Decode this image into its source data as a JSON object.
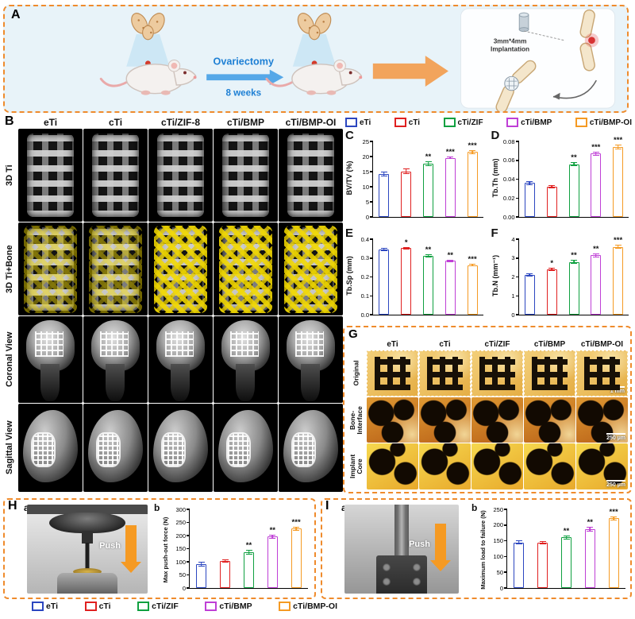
{
  "colors": {
    "groups": [
      "#2b46c0",
      "#e02020",
      "#0fa040",
      "#bf3fd6",
      "#f59a23"
    ],
    "dashed_border": "#ef8b2c",
    "schematic_blue": "#1d7fd4",
    "bone_yellow": "#f2d800"
  },
  "groups": [
    "eTi",
    "cTi",
    "cTi/ZIF",
    "cTi/BMP",
    "cTi/BMP-OI"
  ],
  "panelA": {
    "label": "A",
    "ovariectomy": "Ovariectomy",
    "weeks": "8 weeks",
    "implant_line1": "3mm*4mm",
    "implant_line2": "Implantation"
  },
  "panelB": {
    "label": "B",
    "columns": [
      "eTi",
      "cTi",
      "cTi/ZIF-8",
      "cTi/BMP",
      "cTi/BMP-OI"
    ],
    "rows": [
      "3D Ti",
      "3D Ti+Bone",
      "Coronal View",
      "Sagittal View"
    ]
  },
  "panelG": {
    "label": "G",
    "columns": [
      "eTi",
      "cTi",
      "cTi/ZIF",
      "cTi/BMP",
      "cTi/BMP-OI"
    ],
    "rows": [
      "Original",
      "Bone-Interface",
      "Implant Core"
    ],
    "scalebars": [
      "1 mm",
      "250 µm",
      "250 µm"
    ]
  },
  "panelH": {
    "label": "H",
    "sub_a": "a",
    "sub_b": "b",
    "push": "Push"
  },
  "panelI": {
    "label": "I",
    "sub_a": "a",
    "sub_b": "b",
    "push": "Push"
  },
  "chart_data": [
    {
      "id": "C",
      "panel_label": "C",
      "type": "bar",
      "categories": [
        "eTi",
        "cTi",
        "cTi/ZIF",
        "cTi/BMP",
        "cTi/BMP-OI"
      ],
      "values": [
        14.2,
        15.1,
        17.6,
        19.6,
        21.5
      ],
      "errors": [
        0.9,
        1.0,
        0.7,
        0.5,
        0.6
      ],
      "significance": [
        "",
        "",
        "**",
        "***",
        "***"
      ],
      "ylabel": "BV/TV (%)",
      "ylim": [
        0,
        25
      ],
      "yticks": [
        0,
        5,
        10,
        15,
        20,
        25
      ],
      "ytick_labels": [
        "0",
        "5",
        "10",
        "15",
        "20",
        "25"
      ]
    },
    {
      "id": "D",
      "panel_label": "D",
      "type": "bar",
      "categories": [
        "eTi",
        "cTi",
        "cTi/ZIF",
        "cTi/BMP",
        "cTi/BMP-OI"
      ],
      "values": [
        0.036,
        0.032,
        0.056,
        0.067,
        0.074
      ],
      "errors": [
        0.002,
        0.0015,
        0.002,
        0.002,
        0.0025
      ],
      "significance": [
        "",
        "",
        "**",
        "***",
        "***"
      ],
      "ylabel": "Tb.Th (mm)",
      "ylim": [
        0,
        0.08
      ],
      "yticks": [
        0,
        0.02,
        0.04,
        0.06,
        0.08
      ],
      "ytick_labels": [
        "0.00",
        "0.02",
        "0.04",
        "0.06",
        "0.08"
      ]
    },
    {
      "id": "E",
      "panel_label": "E",
      "type": "bar",
      "categories": [
        "eTi",
        "cTi",
        "cTi/ZIF",
        "cTi/BMP",
        "cTi/BMP-OI"
      ],
      "values": [
        0.345,
        0.352,
        0.31,
        0.285,
        0.262
      ],
      "errors": [
        0.008,
        0.006,
        0.008,
        0.006,
        0.007
      ],
      "significance": [
        "",
        "*",
        "**",
        "**",
        "***"
      ],
      "ylabel": "Tb.Sp (mm)",
      "ylim": [
        0,
        0.4
      ],
      "yticks": [
        0,
        0.1,
        0.2,
        0.3,
        0.4
      ],
      "ytick_labels": [
        "0.0",
        "0.1",
        "0.2",
        "0.3",
        "0.4"
      ]
    },
    {
      "id": "F",
      "panel_label": "F",
      "type": "bar",
      "categories": [
        "eTi",
        "cTi",
        "cTi/ZIF",
        "cTi/BMP",
        "cTi/BMP-OI"
      ],
      "values": [
        2.1,
        2.4,
        2.8,
        3.15,
        3.6
      ],
      "errors": [
        0.08,
        0.1,
        0.1,
        0.1,
        0.12
      ],
      "significance": [
        "",
        "*",
        "**",
        "**",
        "***"
      ],
      "ylabel": "Tb.N (mm⁻¹)",
      "ylim": [
        0,
        4
      ],
      "yticks": [
        0,
        1,
        2,
        3,
        4
      ],
      "ytick_labels": [
        "0",
        "1",
        "2",
        "3",
        "4"
      ]
    },
    {
      "id": "Hb",
      "panel_label": "b",
      "type": "bar",
      "categories": [
        "eTi",
        "cTi",
        "cTi/ZIF",
        "cTi/BMP",
        "cTi/BMP-OI"
      ],
      "values": [
        90,
        102,
        136,
        196,
        226
      ],
      "errors": [
        9,
        6,
        8,
        8,
        7
      ],
      "significance": [
        "",
        "",
        "**",
        "**",
        "***"
      ],
      "ylabel": "Max push-out force (N)",
      "ylim": [
        0,
        300
      ],
      "yticks": [
        0,
        50,
        100,
        150,
        200,
        250,
        300
      ],
      "ytick_labels": [
        "0",
        "50",
        "100",
        "150",
        "200",
        "250",
        "300"
      ]
    },
    {
      "id": "Ib",
      "panel_label": "b",
      "type": "bar",
      "categories": [
        "eTi",
        "cTi",
        "cTi/ZIF",
        "cTi/BMP",
        "cTi/BMP-OI"
      ],
      "values": [
        145,
        144,
        161,
        187,
        221
      ],
      "errors": [
        7,
        6,
        6,
        7,
        6
      ],
      "significance": [
        "",
        "",
        "**",
        "**",
        "***"
      ],
      "ylabel": "Maximum load to failure (N)",
      "ylim": [
        0,
        250
      ],
      "yticks": [
        0,
        50,
        100,
        150,
        200,
        250
      ],
      "ytick_labels": [
        "0",
        "50",
        "100",
        "150",
        "200",
        "250"
      ]
    }
  ]
}
